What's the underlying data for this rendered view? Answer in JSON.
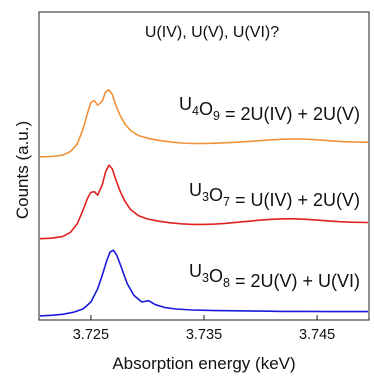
{
  "chart_data": {
    "type": "line",
    "title": "U(IV), U(V), U(VI)?",
    "xlabel": "Absorption energy (keV)",
    "ylabel": "Counts (a.u.)",
    "xlim": [
      3.7205,
      3.7495
    ],
    "ylim": [
      0,
      1
    ],
    "x_ticks": [
      3.725,
      3.735,
      3.745
    ],
    "x_tick_labels": [
      "3.725",
      "3.735",
      "3.745"
    ],
    "y_ticks_visible": false,
    "grid": false,
    "series": [
      {
        "label_parts": [
          [
            "U",
            ""
          ],
          [
            "4",
            "sub"
          ],
          [
            "O",
            ""
          ],
          [
            "9",
            "sub"
          ],
          [
            " = 2U(IV) + 2U(V)",
            ""
          ]
        ],
        "color": "#f0913a",
        "points": [
          [
            3.7205,
            0.606
          ],
          [
            3.7215,
            0.607
          ],
          [
            3.7225,
            0.612
          ],
          [
            3.7232,
            0.626
          ],
          [
            3.7238,
            0.655
          ],
          [
            3.7243,
            0.71
          ],
          [
            3.7247,
            0.77
          ],
          [
            3.725,
            0.81
          ],
          [
            3.7253,
            0.818
          ],
          [
            3.7256,
            0.8
          ],
          [
            3.726,
            0.815
          ],
          [
            3.7263,
            0.85
          ],
          [
            3.7266,
            0.858
          ],
          [
            3.7269,
            0.84
          ],
          [
            3.7272,
            0.8
          ],
          [
            3.7276,
            0.76
          ],
          [
            3.728,
            0.73
          ],
          [
            3.7285,
            0.705
          ],
          [
            3.7292,
            0.686
          ],
          [
            3.73,
            0.676
          ],
          [
            3.731,
            0.668
          ],
          [
            3.732,
            0.662
          ],
          [
            3.733,
            0.658
          ],
          [
            3.734,
            0.656
          ],
          [
            3.735,
            0.656
          ],
          [
            3.736,
            0.657
          ],
          [
            3.737,
            0.659
          ],
          [
            3.738,
            0.661
          ],
          [
            3.739,
            0.664
          ],
          [
            3.74,
            0.667
          ],
          [
            3.741,
            0.67
          ],
          [
            3.742,
            0.672
          ],
          [
            3.743,
            0.673
          ],
          [
            3.744,
            0.672
          ],
          [
            3.745,
            0.67
          ],
          [
            3.746,
            0.667
          ],
          [
            3.747,
            0.664
          ],
          [
            3.748,
            0.662
          ],
          [
            3.7495,
            0.661
          ]
        ]
      },
      {
        "label_parts": [
          [
            "U",
            ""
          ],
          [
            "3",
            "sub"
          ],
          [
            "O",
            ""
          ],
          [
            "7",
            "sub"
          ],
          [
            " = U(IV) + 2U(V)",
            ""
          ]
        ],
        "color": "#e02222",
        "points": [
          [
            3.7205,
            0.298
          ],
          [
            3.7215,
            0.3
          ],
          [
            3.7225,
            0.306
          ],
          [
            3.7232,
            0.322
          ],
          [
            3.7238,
            0.355
          ],
          [
            3.7243,
            0.405
          ],
          [
            3.7247,
            0.45
          ],
          [
            3.725,
            0.472
          ],
          [
            3.7253,
            0.475
          ],
          [
            3.7256,
            0.462
          ],
          [
            3.726,
            0.5
          ],
          [
            3.7263,
            0.55
          ],
          [
            3.7266,
            0.575
          ],
          [
            3.7269,
            0.56
          ],
          [
            3.7272,
            0.52
          ],
          [
            3.7276,
            0.475
          ],
          [
            3.728,
            0.44
          ],
          [
            3.7285,
            0.408
          ],
          [
            3.7292,
            0.385
          ],
          [
            3.73,
            0.372
          ],
          [
            3.731,
            0.364
          ],
          [
            3.732,
            0.358
          ],
          [
            3.733,
            0.354
          ],
          [
            3.734,
            0.352
          ],
          [
            3.735,
            0.352
          ],
          [
            3.736,
            0.353
          ],
          [
            3.737,
            0.356
          ],
          [
            3.738,
            0.36
          ],
          [
            3.739,
            0.364
          ],
          [
            3.74,
            0.368
          ],
          [
            3.741,
            0.371
          ],
          [
            3.742,
            0.373
          ],
          [
            3.743,
            0.373
          ],
          [
            3.744,
            0.371
          ],
          [
            3.745,
            0.368
          ],
          [
            3.746,
            0.365
          ],
          [
            3.747,
            0.362
          ],
          [
            3.748,
            0.36
          ],
          [
            3.7495,
            0.359
          ]
        ]
      },
      {
        "label_parts": [
          [
            "U",
            ""
          ],
          [
            "3",
            "sub"
          ],
          [
            "O",
            ""
          ],
          [
            "8",
            "sub"
          ],
          [
            " = 2U(V) + U(VI)",
            ""
          ]
        ],
        "color": "#1a1adb",
        "points": [
          [
            3.7205,
            0.008
          ],
          [
            3.7215,
            0.01
          ],
          [
            3.7225,
            0.014
          ],
          [
            3.7235,
            0.022
          ],
          [
            3.7243,
            0.034
          ],
          [
            3.725,
            0.06
          ],
          [
            3.7256,
            0.11
          ],
          [
            3.726,
            0.16
          ],
          [
            3.7264,
            0.215
          ],
          [
            3.7267,
            0.248
          ],
          [
            3.727,
            0.255
          ],
          [
            3.7273,
            0.235
          ],
          [
            3.7277,
            0.19
          ],
          [
            3.7282,
            0.13
          ],
          [
            3.7288,
            0.085
          ],
          [
            3.7295,
            0.06
          ],
          [
            3.7301,
            0.065
          ],
          [
            3.7307,
            0.05
          ],
          [
            3.7315,
            0.04
          ],
          [
            3.7325,
            0.034
          ],
          [
            3.734,
            0.03
          ],
          [
            3.736,
            0.028
          ],
          [
            3.738,
            0.027
          ],
          [
            3.74,
            0.026
          ],
          [
            3.742,
            0.025
          ],
          [
            3.744,
            0.025
          ],
          [
            3.746,
            0.024
          ],
          [
            3.748,
            0.024
          ],
          [
            3.7495,
            0.024
          ]
        ]
      }
    ]
  }
}
